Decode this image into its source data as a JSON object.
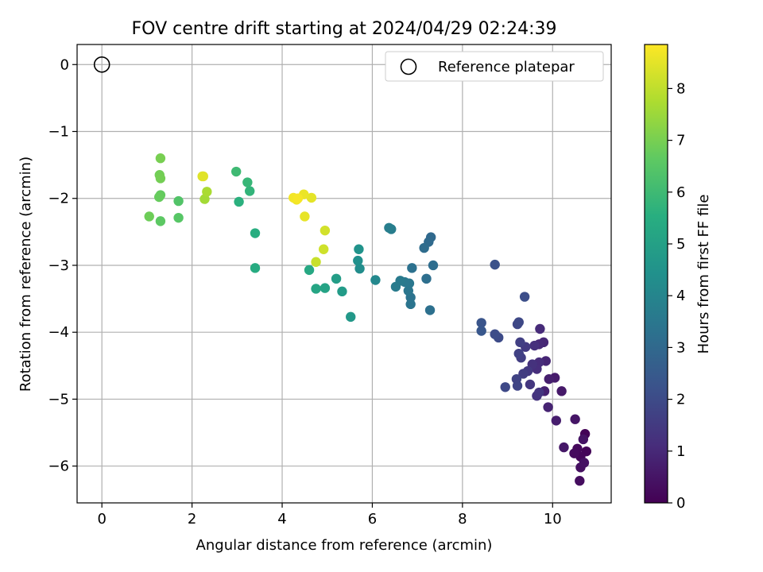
{
  "chart_data": {
    "type": "scatter",
    "title": "FOV centre drift starting at 2024/04/29 02:24:39",
    "xlabel": "Angular distance from reference (arcmin)",
    "ylabel": "Rotation from reference (arcmin)",
    "colorbar_label": "Hours from first FF file",
    "colormap": "viridis",
    "xlim": [
      -0.55,
      11.3
    ],
    "ylim": [
      -6.55,
      0.3
    ],
    "clim": [
      0,
      8.85
    ],
    "xticks": [
      0,
      2,
      4,
      6,
      8,
      10
    ],
    "yticks": [
      0,
      -1,
      -2,
      -3,
      -4,
      -5,
      -6
    ],
    "cticks": [
      0,
      1,
      2,
      3,
      4,
      5,
      6,
      7,
      8
    ],
    "grid": true,
    "legend": {
      "position": "upper-right",
      "label": "Reference platepar"
    },
    "reference_point": {
      "x": 0,
      "y": 0
    },
    "points": [
      {
        "x": 10.72,
        "y": -5.52,
        "h": 0.05
      },
      {
        "x": 10.75,
        "y": -5.78,
        "h": 0.1
      },
      {
        "x": 10.62,
        "y": -5.86,
        "h": 0.15
      },
      {
        "x": 10.55,
        "y": -5.74,
        "h": 0.2
      },
      {
        "x": 10.48,
        "y": -5.81,
        "h": 0.25
      },
      {
        "x": 10.6,
        "y": -6.22,
        "h": 0.3
      },
      {
        "x": 10.62,
        "y": -6.02,
        "h": 0.35
      },
      {
        "x": 10.7,
        "y": -5.95,
        "h": 0.4
      },
      {
        "x": 10.68,
        "y": -5.6,
        "h": 0.45
      },
      {
        "x": 10.5,
        "y": -5.3,
        "h": 0.5
      },
      {
        "x": 10.25,
        "y": -5.72,
        "h": 0.55
      },
      {
        "x": 10.2,
        "y": -4.88,
        "h": 0.6
      },
      {
        "x": 10.05,
        "y": -4.68,
        "h": 0.65
      },
      {
        "x": 10.08,
        "y": -5.32,
        "h": 0.7
      },
      {
        "x": 9.92,
        "y": -4.7,
        "h": 0.75
      },
      {
        "x": 9.82,
        "y": -4.88,
        "h": 0.8
      },
      {
        "x": 9.9,
        "y": -5.12,
        "h": 0.85
      },
      {
        "x": 9.85,
        "y": -4.43,
        "h": 0.9
      },
      {
        "x": 9.8,
        "y": -4.15,
        "h": 0.95
      },
      {
        "x": 9.7,
        "y": -4.18,
        "h": 1.0
      },
      {
        "x": 9.72,
        "y": -3.95,
        "h": 1.05
      },
      {
        "x": 9.7,
        "y": -4.45,
        "h": 1.1
      },
      {
        "x": 9.65,
        "y": -4.55,
        "h": 1.15
      },
      {
        "x": 9.6,
        "y": -4.2,
        "h": 1.2
      },
      {
        "x": 9.55,
        "y": -4.48,
        "h": 1.25
      },
      {
        "x": 9.65,
        "y": -4.95,
        "h": 1.3
      },
      {
        "x": 9.7,
        "y": -4.9,
        "h": 1.35
      },
      {
        "x": 9.5,
        "y": -4.78,
        "h": 1.4
      },
      {
        "x": 9.45,
        "y": -4.58,
        "h": 1.45
      },
      {
        "x": 9.4,
        "y": -4.22,
        "h": 1.5
      },
      {
        "x": 9.35,
        "y": -4.62,
        "h": 1.55
      },
      {
        "x": 9.3,
        "y": -4.38,
        "h": 1.6
      },
      {
        "x": 9.28,
        "y": -4.15,
        "h": 1.65
      },
      {
        "x": 9.25,
        "y": -4.32,
        "h": 1.7
      },
      {
        "x": 9.2,
        "y": -4.7,
        "h": 1.75
      },
      {
        "x": 9.22,
        "y": -4.8,
        "h": 1.8
      },
      {
        "x": 9.22,
        "y": -3.88,
        "h": 1.85
      },
      {
        "x": 9.25,
        "y": -3.85,
        "h": 1.9
      },
      {
        "x": 8.95,
        "y": -4.82,
        "h": 1.95
      },
      {
        "x": 8.8,
        "y": -4.08,
        "h": 2.0
      },
      {
        "x": 8.72,
        "y": -4.03,
        "h": 2.05
      },
      {
        "x": 9.38,
        "y": -3.47,
        "h": 2.1
      },
      {
        "x": 8.72,
        "y": -2.99,
        "h": 2.2
      },
      {
        "x": 8.42,
        "y": -3.86,
        "h": 2.3
      },
      {
        "x": 8.42,
        "y": -3.98,
        "h": 2.4
      },
      {
        "x": 7.3,
        "y": -2.58,
        "h": 3.0
      },
      {
        "x": 7.25,
        "y": -2.65,
        "h": 3.05
      },
      {
        "x": 7.15,
        "y": -2.74,
        "h": 3.1
      },
      {
        "x": 7.35,
        "y": -3.0,
        "h": 3.15
      },
      {
        "x": 7.2,
        "y": -3.2,
        "h": 3.2
      },
      {
        "x": 7.28,
        "y": -3.67,
        "h": 3.25
      },
      {
        "x": 6.88,
        "y": -3.04,
        "h": 3.3
      },
      {
        "x": 6.85,
        "y": -3.48,
        "h": 3.35
      },
      {
        "x": 6.85,
        "y": -3.58,
        "h": 3.4
      },
      {
        "x": 6.8,
        "y": -3.38,
        "h": 3.45
      },
      {
        "x": 6.82,
        "y": -3.27,
        "h": 3.5
      },
      {
        "x": 6.72,
        "y": -3.25,
        "h": 3.55
      },
      {
        "x": 6.62,
        "y": -3.23,
        "h": 3.6
      },
      {
        "x": 6.52,
        "y": -3.32,
        "h": 3.65
      },
      {
        "x": 6.42,
        "y": -2.46,
        "h": 3.7
      },
      {
        "x": 6.37,
        "y": -2.44,
        "h": 3.75
      },
      {
        "x": 6.07,
        "y": -3.22,
        "h": 4.1
      },
      {
        "x": 5.72,
        "y": -3.05,
        "h": 4.3
      },
      {
        "x": 5.68,
        "y": -2.93,
        "h": 4.4
      },
      {
        "x": 5.7,
        "y": -2.76,
        "h": 4.5
      },
      {
        "x": 5.52,
        "y": -3.77,
        "h": 4.7
      },
      {
        "x": 5.33,
        "y": -3.39,
        "h": 4.8
      },
      {
        "x": 5.2,
        "y": -3.2,
        "h": 4.9
      },
      {
        "x": 4.95,
        "y": -3.34,
        "h": 5.1
      },
      {
        "x": 4.75,
        "y": -3.35,
        "h": 5.2
      },
      {
        "x": 4.6,
        "y": -3.07,
        "h": 5.3
      },
      {
        "x": 3.4,
        "y": -3.04,
        "h": 5.4
      },
      {
        "x": 3.4,
        "y": -2.52,
        "h": 5.5
      },
      {
        "x": 3.04,
        "y": -2.05,
        "h": 5.6
      },
      {
        "x": 3.28,
        "y": -1.89,
        "h": 5.75
      },
      {
        "x": 3.23,
        "y": -1.76,
        "h": 5.85
      },
      {
        "x": 2.98,
        "y": -1.6,
        "h": 6.0
      },
      {
        "x": 1.7,
        "y": -2.04,
        "h": 6.4
      },
      {
        "x": 1.7,
        "y": -2.29,
        "h": 6.5
      },
      {
        "x": 1.3,
        "y": -2.34,
        "h": 6.6
      },
      {
        "x": 1.3,
        "y": -1.95,
        "h": 6.7
      },
      {
        "x": 1.27,
        "y": -1.98,
        "h": 6.75
      },
      {
        "x": 1.05,
        "y": -2.27,
        "h": 6.85
      },
      {
        "x": 1.28,
        "y": -1.65,
        "h": 6.9
      },
      {
        "x": 1.3,
        "y": -1.7,
        "h": 6.95
      },
      {
        "x": 1.3,
        "y": -1.4,
        "h": 7.0
      },
      {
        "x": 2.28,
        "y": -2.01,
        "h": 7.6
      },
      {
        "x": 2.33,
        "y": -1.9,
        "h": 7.7
      },
      {
        "x": 4.75,
        "y": -2.95,
        "h": 8.1
      },
      {
        "x": 4.92,
        "y": -2.76,
        "h": 8.2
      },
      {
        "x": 4.95,
        "y": -2.48,
        "h": 8.25
      },
      {
        "x": 2.23,
        "y": -1.67,
        "h": 8.4
      },
      {
        "x": 2.25,
        "y": -1.67,
        "h": 8.45
      },
      {
        "x": 4.65,
        "y": -1.99,
        "h": 8.5
      },
      {
        "x": 4.5,
        "y": -2.27,
        "h": 8.55
      },
      {
        "x": 4.48,
        "y": -1.94,
        "h": 8.6
      },
      {
        "x": 4.32,
        "y": -2.02,
        "h": 8.65
      },
      {
        "x": 4.25,
        "y": -1.99,
        "h": 8.7
      },
      {
        "x": 4.35,
        "y": -2.0,
        "h": 8.75
      }
    ]
  }
}
